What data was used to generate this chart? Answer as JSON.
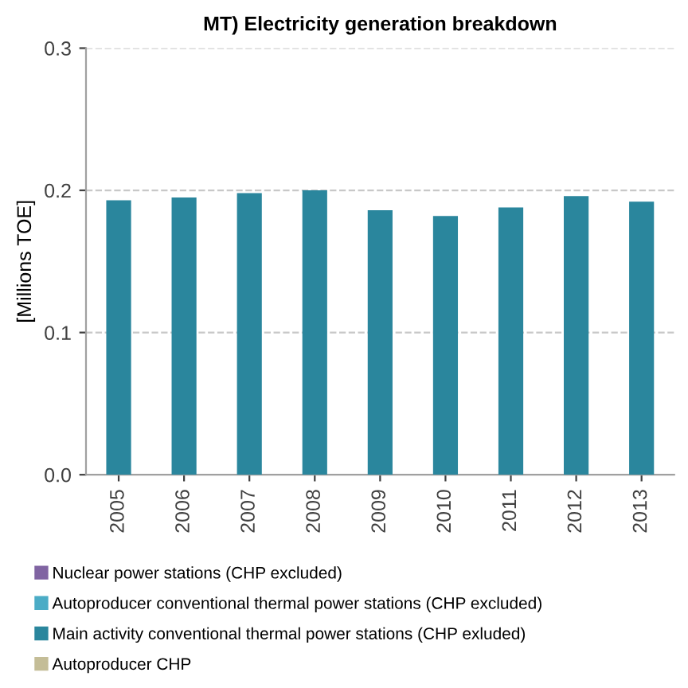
{
  "chart_data": {
    "type": "bar",
    "title": "MT) Electricity generation breakdown",
    "ylabel": "[Millions TOE]",
    "categories": [
      "2005",
      "2006",
      "2007",
      "2008",
      "2009",
      "2010",
      "2011",
      "2012",
      "2013"
    ],
    "series": [
      {
        "name": "Nuclear power stations (CHP excluded)",
        "color": "#8064a2",
        "values": [
          0,
          0,
          0,
          0,
          0,
          0,
          0,
          0,
          0
        ]
      },
      {
        "name": "Autoproducer conventional thermal power stations (CHP excluded)",
        "color": "#4bacc6",
        "values": [
          0,
          0,
          0,
          0,
          0,
          0,
          0,
          0,
          0
        ]
      },
      {
        "name": "Main activity conventional thermal power stations (CHP exluded)",
        "color": "#2a869d",
        "values": [
          0.193,
          0.195,
          0.198,
          0.2,
          0.186,
          0.182,
          0.188,
          0.196,
          0.192
        ]
      },
      {
        "name": "Autoproducer CHP",
        "color": "#c4bd97",
        "values": [
          0,
          0,
          0,
          0,
          0,
          0,
          0,
          0,
          0
        ]
      }
    ],
    "ylim": [
      0,
      0.3
    ],
    "yticks": [
      {
        "value": 0,
        "label": "0.0"
      },
      {
        "value": 0.1,
        "label": "0.1"
      },
      {
        "value": 0.2,
        "label": "0.2"
      },
      {
        "value": 0.3,
        "label": "0.3"
      }
    ],
    "grid": "y",
    "legend": "bottom"
  }
}
